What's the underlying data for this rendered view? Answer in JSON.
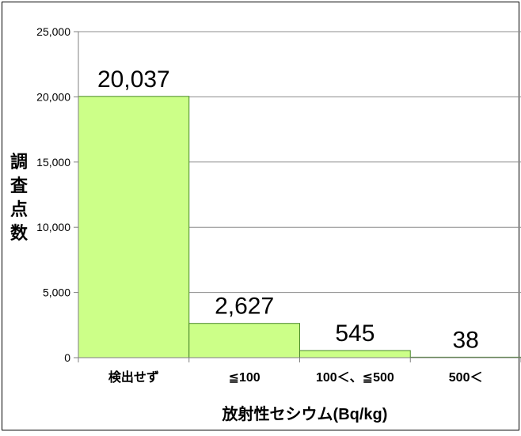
{
  "chart_data": {
    "type": "bar",
    "categories": [
      "検出せず",
      "≦100",
      "100＜、≦500",
      "500＜"
    ],
    "values": [
      20037,
      2627,
      545,
      38
    ],
    "value_labels": [
      "20,037",
      "2,627",
      "545",
      "38"
    ],
    "title": "",
    "xlabel": "放射性セシウム(Bq/kg)",
    "ylabel": "調査点数",
    "ylim": [
      0,
      25000
    ],
    "yticks": [
      0,
      5000,
      10000,
      15000,
      20000,
      25000
    ],
    "ytick_labels": [
      "0",
      "5,000",
      "10,000",
      "15,000",
      "20,000",
      "25,000"
    ],
    "grid": true,
    "legend": "none",
    "colors": {
      "bar_fill": "#ccff88",
      "bar_stroke": "#4a8a2a",
      "grid": "#8c8c8c",
      "axis": "#808080"
    }
  }
}
